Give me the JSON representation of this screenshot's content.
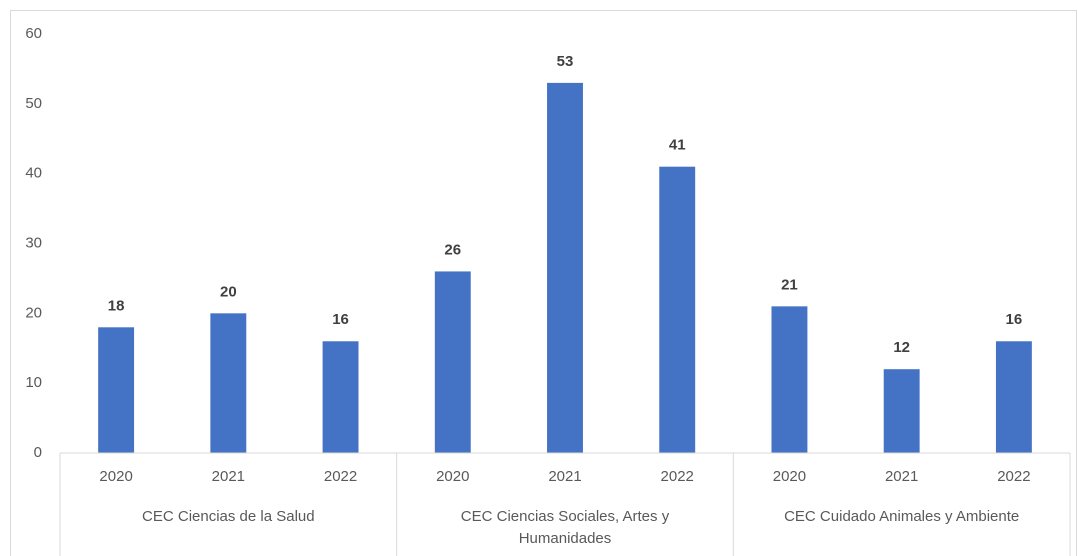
{
  "chart_data": {
    "type": "bar",
    "categories": [
      "2020",
      "2021",
      "2022",
      "2020",
      "2021",
      "2022",
      "2020",
      "2021",
      "2022"
    ],
    "groups": [
      "CEC Ciencias de la Salud",
      "CEC Ciencias Sociales, Artes y Humanidades",
      "CEC Cuidado Animales y Ambiente"
    ],
    "values": [
      18,
      20,
      16,
      26,
      53,
      41,
      21,
      12,
      16
    ],
    "color": "#4472c4",
    "ylim": [
      0,
      60
    ],
    "yticks": [
      0,
      10,
      20,
      30,
      40,
      50,
      60
    ],
    "grid": false
  }
}
